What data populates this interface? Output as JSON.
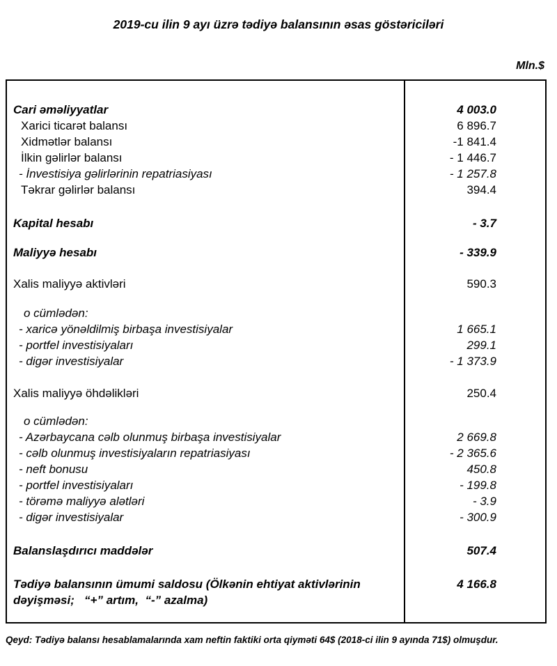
{
  "title": "2019-cu ilin 9 ayı üzrə tədiyə balansının əsas göstəriciləri",
  "unit_label": "Mln.$",
  "colors": {
    "text": "#000000",
    "border": "#000000",
    "background": "#ffffff"
  },
  "table": {
    "rows": [
      {
        "label": "Cari əməliyyatlar",
        "value": "4 003.0",
        "style": "bold",
        "indent": "h",
        "gap": 0
      },
      {
        "label": "Xarici ticarət balansı",
        "value": "6 896.7",
        "style": "plain",
        "indent": "sub",
        "gap": 0
      },
      {
        "label": "Xidmətlər balansı",
        "value": "-1 841.4",
        "style": "plain",
        "indent": "sub",
        "gap": 0
      },
      {
        "label": "İlkin gəlirlər balansı",
        "value": "- 1 446.7",
        "style": "plain",
        "indent": "sub",
        "gap": 0
      },
      {
        "label": "- İnvestisiya gəlirlərinin repatriasiyası",
        "value": "- 1 257.8",
        "style": "italic",
        "indent": "dash",
        "gap": 0
      },
      {
        "label": "Təkrar gəlirlər balansı",
        "value": "394.4",
        "style": "plain",
        "indent": "sub",
        "gap": 0
      },
      {
        "label": "Kapital hesabı",
        "value": "- 3.7",
        "style": "bold",
        "indent": "h",
        "gap": 25
      },
      {
        "label": "Maliyyə hesabı",
        "value": "- 339.9",
        "style": "bold",
        "indent": "h",
        "gap": 19
      },
      {
        "label": "Xalis maliyyə aktivləri",
        "value": "590.3",
        "style": "plain",
        "indent": "h",
        "gap": 22
      },
      {
        "label": "o cümlədən:",
        "value": "",
        "style": "italic",
        "indent": "inc",
        "gap": 19
      },
      {
        "label": "- xaricə yönəldilmiş birbaşa investisiyalar",
        "value": "1 665.1",
        "style": "italic",
        "indent": "dash",
        "gap": 0
      },
      {
        "label": "- portfel investisiyaları",
        "value": "299.1",
        "style": "italic",
        "indent": "dash",
        "gap": 0
      },
      {
        "label": "- digər investisiyalar",
        "value": "- 1 373.9",
        "style": "italic",
        "indent": "dash",
        "gap": 0
      },
      {
        "label": "Xalis maliyyə öhdəlikləri",
        "value": "250.4",
        "style": "plain",
        "indent": "h",
        "gap": 23
      },
      {
        "label": "o cümlədən:",
        "value": "",
        "style": "italic",
        "indent": "inc",
        "gap": 17
      },
      {
        "label": "- Azərbaycana cəlb olunmuş birbaşa investisiyalar",
        "value": "2 669.8",
        "style": "italic",
        "indent": "dash",
        "gap": 0
      },
      {
        "label": "- cəlb olunmuş investisiyaların repatriasiyası",
        "value": "- 2 365.6",
        "style": "italic",
        "indent": "dash",
        "gap": 0
      },
      {
        "label": "- neft bonusu",
        "value": "450.8",
        "style": "italic",
        "indent": "dash",
        "gap": 0
      },
      {
        "label": "- portfel investisiyaları",
        "value": "- 199.8",
        "style": "italic",
        "indent": "dash",
        "gap": 0
      },
      {
        "label": "- törəmə maliyyə alətləri",
        "value": "- 3.9",
        "style": "italic",
        "indent": "dash",
        "gap": 0
      },
      {
        "label": "- digər investisiyalar",
        "value": "- 300.9",
        "style": "italic",
        "indent": "dash",
        "gap": 0
      },
      {
        "label": "Balanslaşdırıcı maddələr",
        "value": "507.4",
        "style": "bold",
        "indent": "h",
        "gap": 25
      },
      {
        "label": "Tədiyə balansının ümumi saldosu (Ölkənin ehtiyat aktivlərinin dəyişməsi;   “+” artım,  “-” azalma)",
        "value": "4 166.8",
        "style": "bold",
        "indent": "h",
        "gap": 25
      }
    ]
  },
  "footnote": "Qeyd: Tədiyə balansı hesablamalarında xam neftin faktiki orta qiyməti 64$ (2018-ci ilin 9 ayında 71$) olmuşdur."
}
